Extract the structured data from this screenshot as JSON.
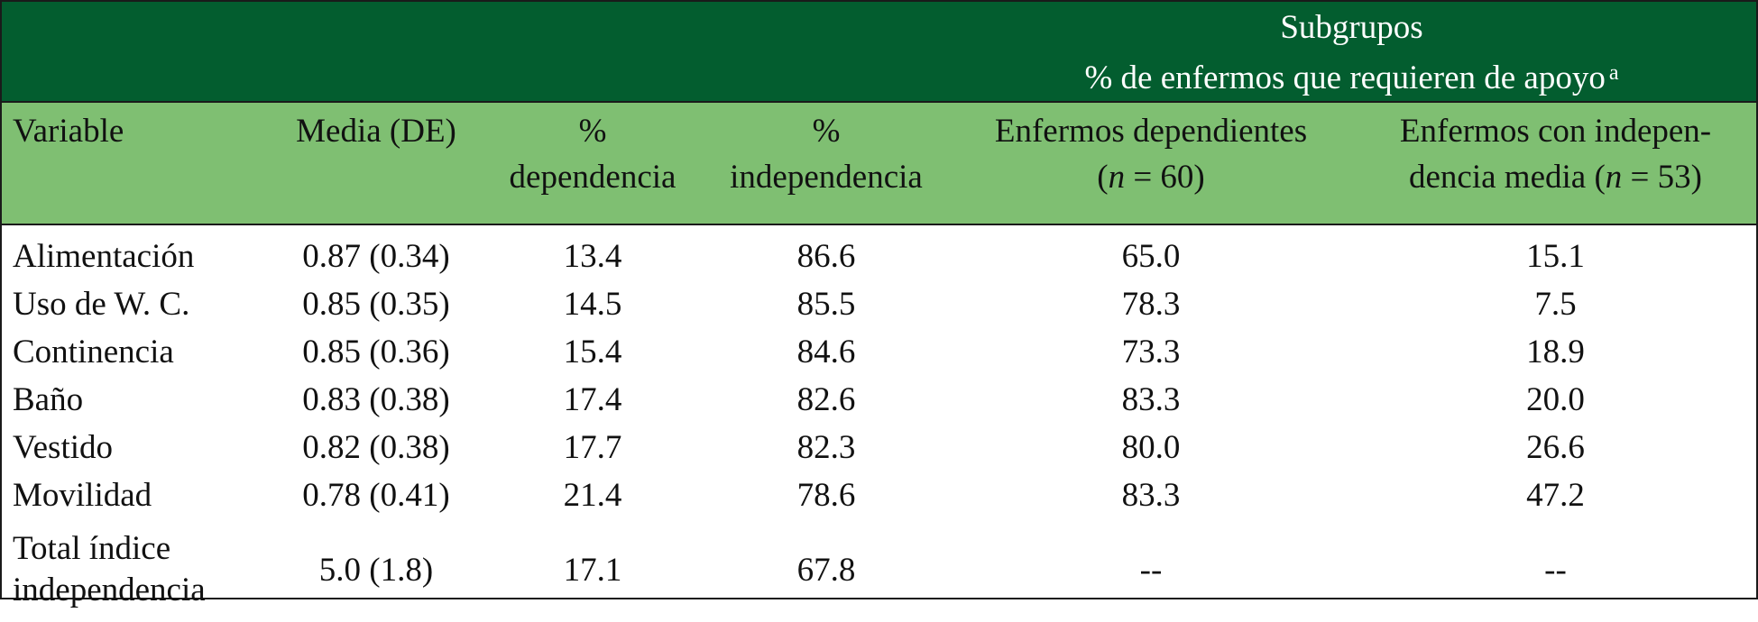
{
  "table": {
    "group_header": {
      "line1": "Subgrupos",
      "line2": "% de enfermos que requieren de apoyo",
      "superscript": "a"
    },
    "columns": [
      {
        "lines": [
          "Variable"
        ]
      },
      {
        "lines": [
          "Media (DE)"
        ]
      },
      {
        "lines": [
          "%",
          "dependencia"
        ]
      },
      {
        "lines": [
          "%",
          "independencia"
        ]
      },
      {
        "line1": "Enfermos dependientes",
        "paren_open": "(",
        "n_symbol": "n",
        "n_rest": " = 60)"
      },
      {
        "line1": "Enfermos con indepen-",
        "line2_pre": "dencia media (",
        "n_symbol": "n",
        "n_rest": " = 53)"
      }
    ],
    "rows": [
      {
        "variable": [
          "Alimentación"
        ],
        "media": "0.87 (0.34)",
        "dependencia": "13.4",
        "independencia": "86.6",
        "dependientes": "65.0",
        "indep_media": "15.1"
      },
      {
        "variable": [
          "Uso de W. C."
        ],
        "media": "0.85 (0.35)",
        "dependencia": "14.5",
        "independencia": "85.5",
        "dependientes": "78.3",
        "indep_media": "7.5"
      },
      {
        "variable": [
          "Continencia"
        ],
        "media": "0.85 (0.36)",
        "dependencia": "15.4",
        "independencia": "84.6",
        "dependientes": "73.3",
        "indep_media": "18.9"
      },
      {
        "variable": [
          "Baño"
        ],
        "media": "0.83 (0.38)",
        "dependencia": "17.4",
        "independencia": "82.6",
        "dependientes": "83.3",
        "indep_media": "20.0"
      },
      {
        "variable": [
          "Vestido"
        ],
        "media": "0.82 (0.38)",
        "dependencia": "17.7",
        "independencia": "82.3",
        "dependientes": "80.0",
        "indep_media": "26.6"
      },
      {
        "variable": [
          "Movilidad"
        ],
        "media": "0.78 (0.41)",
        "dependencia": "21.4",
        "independencia": "78.6",
        "dependientes": "83.3",
        "indep_media": "47.2"
      },
      {
        "variable": [
          "Total índice",
          "independencia"
        ],
        "media": "5.0 (1.8)",
        "dependencia": "17.1",
        "independencia": "67.8",
        "dependientes": "--",
        "indep_media": "--"
      }
    ]
  },
  "colors": {
    "group_header_bg": "#035d2f",
    "column_header_bg": "#7fbf72",
    "body_bg": "#ffffff",
    "text": "#111111"
  }
}
